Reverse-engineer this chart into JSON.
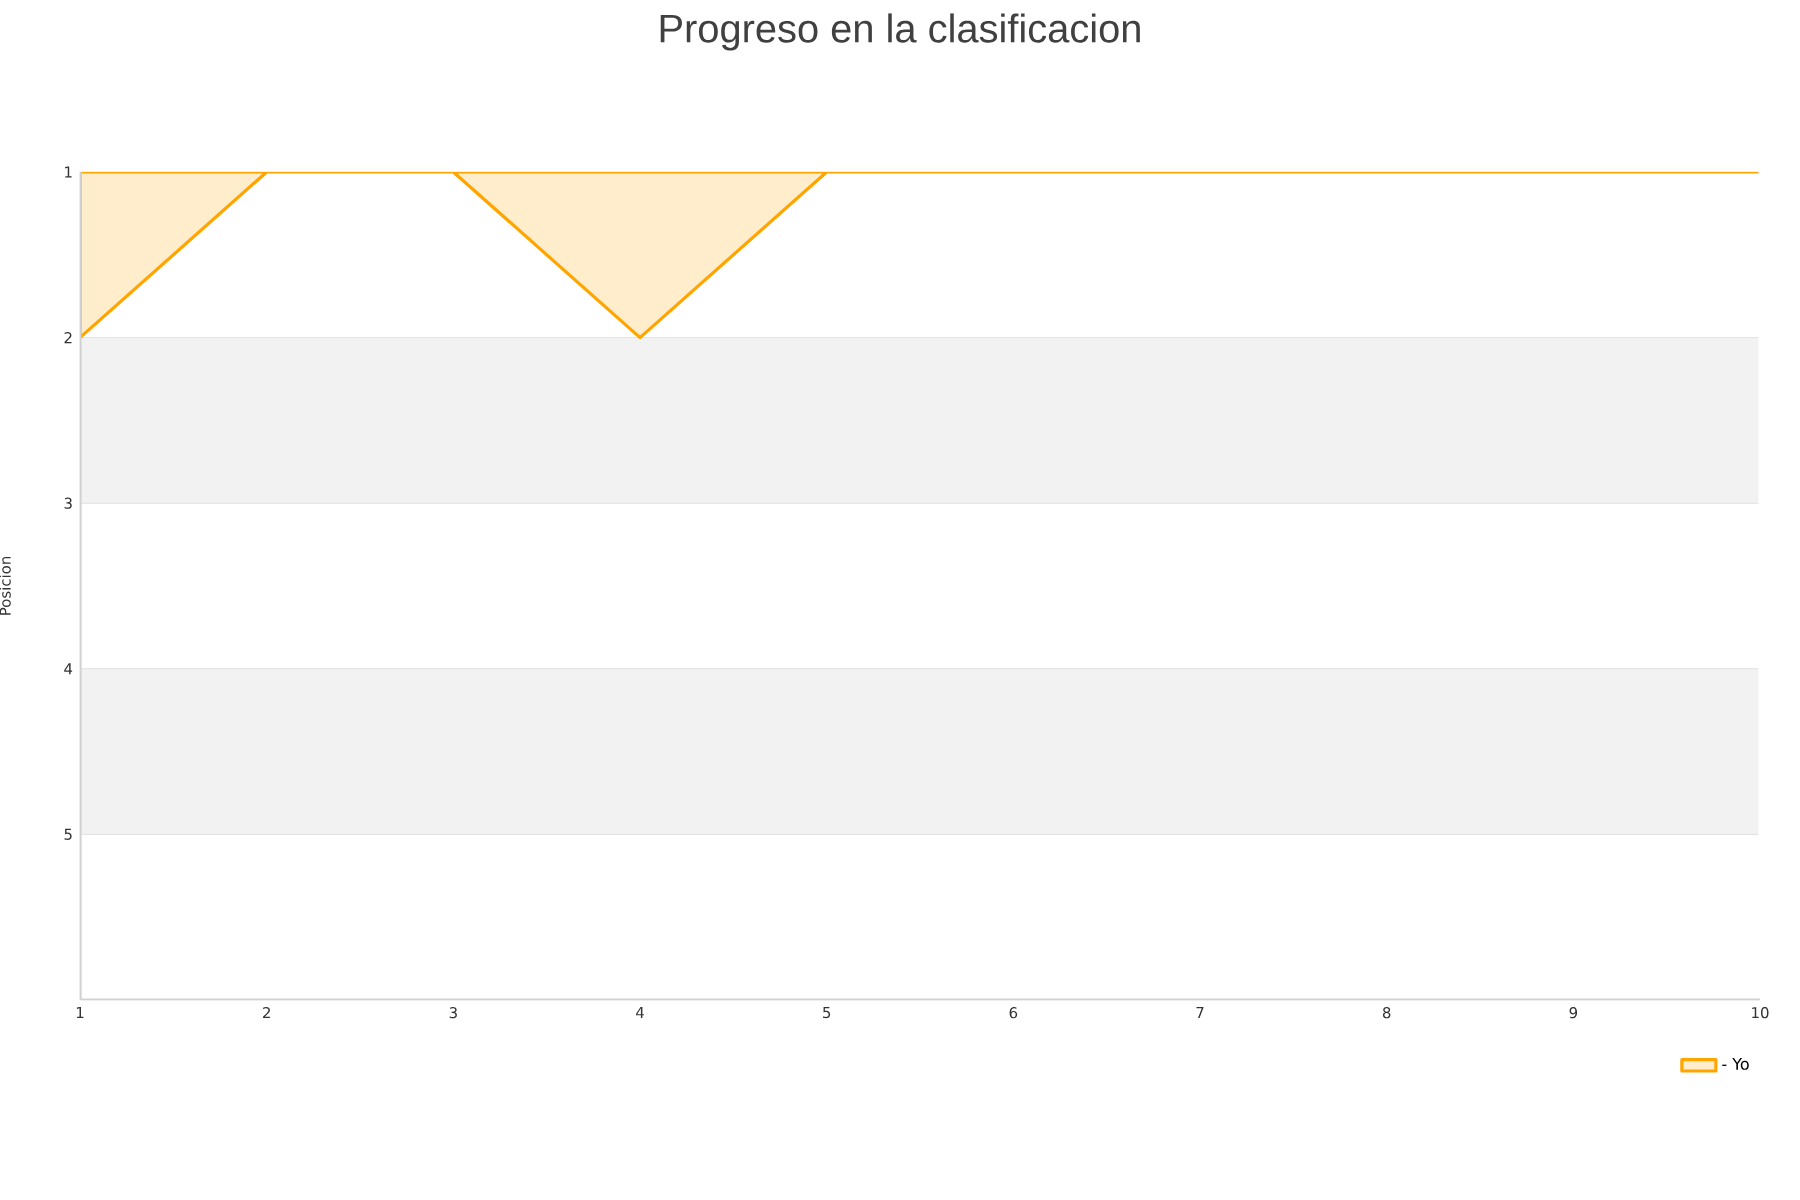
{
  "chart_data": {
    "type": "area",
    "title": "Progreso en la clasificacion",
    "ylabel": "Posicion",
    "x": [
      1,
      2,
      3,
      4,
      5,
      6,
      7,
      8,
      9,
      10
    ],
    "series": [
      {
        "name": "- Yo",
        "color": "#ffa500",
        "values": [
          2,
          1,
          1,
          2,
          1,
          1,
          1,
          1,
          1,
          1
        ]
      }
    ],
    "xlim": [
      1,
      10
    ],
    "xticks": [
      1,
      2,
      3,
      4,
      5,
      6,
      7,
      8,
      9,
      10
    ],
    "ylim": [
      6,
      1
    ],
    "yticks": [
      1,
      2,
      3,
      4,
      5
    ],
    "bands": [
      {
        "axis": "y",
        "from": 2,
        "to": 3,
        "color": "#f2f2f2"
      },
      {
        "axis": "y",
        "from": 4,
        "to": 5,
        "color": "#f2f2f2"
      }
    ],
    "grid": "y",
    "legend": "bottom right",
    "marker": "none",
    "line_style": "solid"
  }
}
